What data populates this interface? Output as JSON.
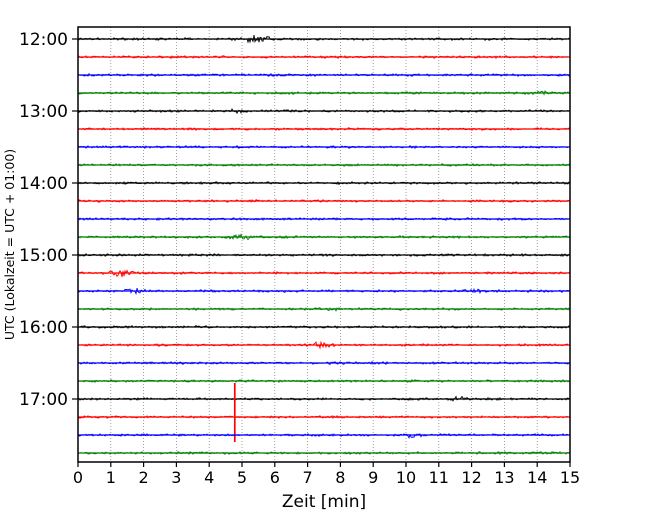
{
  "chart_data": {
    "type": "line",
    "title": "",
    "xlabel": "Zeit  [min]",
    "ylabel": "UTC (Lokalzeit = UTC + 01:00)",
    "xlim": [
      0,
      15
    ],
    "x_ticks": [
      "0",
      "1",
      "2",
      "3",
      "4",
      "5",
      "6",
      "7",
      "8",
      "9",
      "10",
      "11",
      "12",
      "13",
      "14",
      "15"
    ],
    "y_tick_labels": [
      "12:00",
      "13:00",
      "14:00",
      "15:00",
      "16:00",
      "17:00"
    ],
    "rows_per_hour": 4,
    "minutes_per_row": 15,
    "grid": "vertical dotted gridline at every minute",
    "legend": "none",
    "colors_cycle": [
      "#000000",
      "#ff0000",
      "#0000ff",
      "#008000"
    ],
    "grid_color": "#888888",
    "axis_color": "#000000",
    "traces": [
      {
        "time": "12:00",
        "color": "#000000",
        "events": [
          {
            "type": "burst",
            "pos": 5.5,
            "amp": 4,
            "width": 0.45
          }
        ]
      },
      {
        "time": "12:15",
        "color": "#ff0000",
        "events": []
      },
      {
        "time": "12:30",
        "color": "#0000ff",
        "events": []
      },
      {
        "time": "12:45",
        "color": "#008000",
        "events": [
          {
            "type": "burst",
            "pos": 14.1,
            "amp": 2,
            "width": 0.4
          }
        ]
      },
      {
        "time": "13:00",
        "color": "#000000",
        "events": [
          {
            "type": "burst",
            "pos": 4.9,
            "amp": 1.3,
            "width": 0.4
          }
        ]
      },
      {
        "time": "13:15",
        "color": "#ff0000",
        "events": []
      },
      {
        "time": "13:30",
        "color": "#0000ff",
        "events": []
      },
      {
        "time": "13:45",
        "color": "#008000",
        "events": []
      },
      {
        "time": "14:00",
        "color": "#000000",
        "events": [
          {
            "type": "burst",
            "pos": 8.0,
            "amp": 2.8,
            "width": 0.15
          }
        ]
      },
      {
        "time": "14:15",
        "color": "#ff0000",
        "events": []
      },
      {
        "time": "14:30",
        "color": "#0000ff",
        "events": [
          {
            "type": "burst",
            "pos": 6.1,
            "amp": 1.6,
            "width": 0.15
          }
        ]
      },
      {
        "time": "14:45",
        "color": "#008000",
        "events": [
          {
            "type": "burst",
            "pos": 5.0,
            "amp": 2.6,
            "width": 0.45
          }
        ]
      },
      {
        "time": "15:00",
        "color": "#000000",
        "events": []
      },
      {
        "time": "15:15",
        "color": "#ff0000",
        "events": [
          {
            "type": "burst",
            "pos": 1.35,
            "amp": 3.6,
            "width": 0.45
          }
        ]
      },
      {
        "time": "15:30",
        "color": "#0000ff",
        "events": [
          {
            "type": "burst",
            "pos": 1.7,
            "amp": 2.6,
            "width": 0.35
          },
          {
            "type": "burst",
            "pos": 12.1,
            "amp": 1.5,
            "width": 0.5
          }
        ]
      },
      {
        "time": "15:45",
        "color": "#008000",
        "events": [
          {
            "type": "burst",
            "pos": 7.8,
            "amp": 1.6,
            "width": 0.3
          }
        ]
      },
      {
        "time": "16:00",
        "color": "#000000",
        "events": []
      },
      {
        "time": "16:15",
        "color": "#ff0000",
        "events": [
          {
            "type": "burst",
            "pos": 7.4,
            "amp": 3.2,
            "width": 0.4
          }
        ]
      },
      {
        "time": "16:30",
        "color": "#0000ff",
        "events": []
      },
      {
        "time": "16:45",
        "color": "#008000",
        "events": []
      },
      {
        "time": "17:00",
        "color": "#000000",
        "events": [
          {
            "type": "burst",
            "pos": 11.6,
            "amp": 3.0,
            "width": 0.25
          }
        ]
      },
      {
        "time": "17:15",
        "color": "#ff0000",
        "events": [
          {
            "type": "spike",
            "pos": 4.78,
            "up": 34,
            "down": 25
          }
        ]
      },
      {
        "time": "17:30",
        "color": "#0000ff",
        "events": [
          {
            "type": "burst",
            "pos": 10.2,
            "amp": 2.2,
            "width": 0.3
          }
        ]
      },
      {
        "time": "17:45",
        "color": "#008000",
        "events": [
          {
            "type": "burst",
            "pos": 14.0,
            "amp": 1.2,
            "width": 0.6
          }
        ]
      }
    ]
  }
}
